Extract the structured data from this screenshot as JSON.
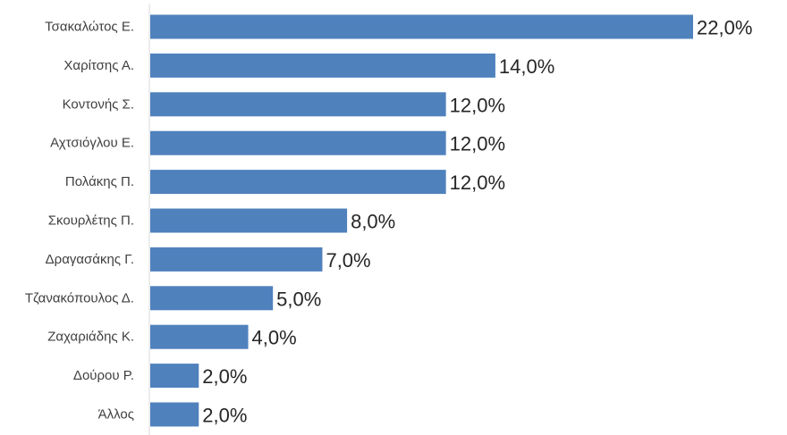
{
  "chart_data": {
    "type": "bar",
    "orientation": "horizontal",
    "categories": [
      "Τσακαλώτος Ε.",
      "Χαρίτσης Α.",
      "Κοντονής Σ.",
      "Αχτσιόγλου Ε.",
      "Πολάκης Π.",
      "Σκουρλέτης Π.",
      "Δραγασάκης Γ.",
      "Τζανακόπουλος Δ.",
      "Ζαχαριάδης Κ.",
      "Δούρου Ρ.",
      "Άλλος"
    ],
    "values": [
      22.0,
      14.0,
      12.0,
      12.0,
      12.0,
      8.0,
      7.0,
      5.0,
      4.0,
      2.0,
      2.0
    ],
    "data_labels": [
      "22,0%",
      "14,0%",
      "12,0%",
      "12,0%",
      "12,0%",
      "8,0%",
      "7,0%",
      "5,0%",
      "4,0%",
      "2,0%",
      "2,0%"
    ],
    "unit": "%",
    "xlim": [
      0,
      22.0
    ],
    "grid": false,
    "legend": "none",
    "colors": {
      "bar": "#4f81bd",
      "axis": "#d9d9d9"
    }
  }
}
